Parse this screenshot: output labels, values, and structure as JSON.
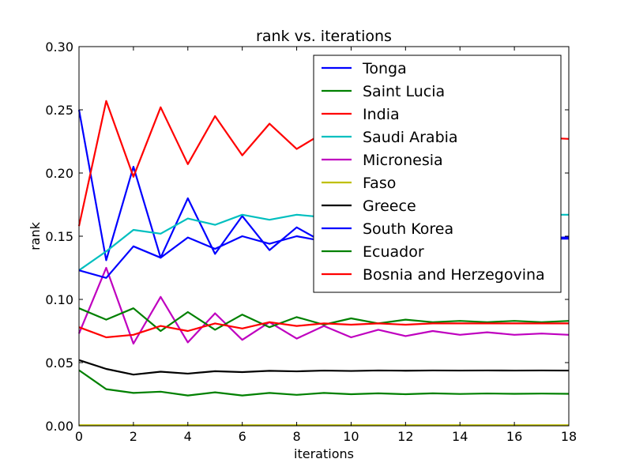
{
  "chart_data": {
    "type": "line",
    "title": "rank vs. iterations",
    "xlabel": "iterations",
    "ylabel": "rank",
    "xlim": [
      0,
      18
    ],
    "ylim": [
      0.0,
      0.3
    ],
    "xticks": [
      "0",
      "2",
      "4",
      "6",
      "8",
      "10",
      "12",
      "14",
      "16",
      "18"
    ],
    "yticks": [
      "0.00",
      "0.05",
      "0.10",
      "0.15",
      "0.20",
      "0.25",
      "0.30"
    ],
    "grid": false,
    "legend_position": "top-right",
    "x": [
      0,
      1,
      2,
      3,
      4,
      5,
      6,
      7,
      8,
      9,
      10,
      11,
      12,
      13,
      14,
      15,
      16,
      17,
      18
    ],
    "series": [
      {
        "name": "Tonga",
        "color": "#0000ff",
        "values": [
          0.25,
          0.131,
          0.205,
          0.133,
          0.18,
          0.136,
          0.166,
          0.139,
          0.157,
          0.145,
          0.152,
          0.148,
          0.151,
          0.149,
          0.15,
          0.149,
          0.15,
          0.149,
          0.149
        ]
      },
      {
        "name": "Saint Lucia",
        "color": "#008000",
        "values": [
          0.044,
          0.029,
          0.026,
          0.027,
          0.024,
          0.0265,
          0.024,
          0.026,
          0.0245,
          0.026,
          0.025,
          0.0257,
          0.025,
          0.0257,
          0.0252,
          0.0256,
          0.0253,
          0.0255,
          0.0253
        ]
      },
      {
        "name": "India",
        "color": "#ff0000",
        "values": [
          0.158,
          0.257,
          0.197,
          0.252,
          0.207,
          0.245,
          0.214,
          0.239,
          0.219,
          0.232,
          0.224,
          0.23,
          0.226,
          0.229,
          0.227,
          0.229,
          0.227,
          0.228,
          0.227
        ]
      },
      {
        "name": "Saudi Arabia",
        "color": "#00bfbf",
        "values": [
          0.123,
          0.138,
          0.155,
          0.152,
          0.164,
          0.159,
          0.167,
          0.163,
          0.167,
          0.165,
          0.167,
          0.166,
          0.167,
          0.166,
          0.167,
          0.167,
          0.167,
          0.167,
          0.167
        ]
      },
      {
        "name": "Micronesia",
        "color": "#bf00bf",
        "values": [
          0.073,
          0.125,
          0.065,
          0.102,
          0.066,
          0.089,
          0.068,
          0.082,
          0.069,
          0.079,
          0.07,
          0.076,
          0.071,
          0.075,
          0.072,
          0.074,
          0.072,
          0.073,
          0.072
        ]
      },
      {
        "name": "Faso",
        "color": "#bfbf00",
        "values": [
          0.0005,
          0.0005,
          0.0005,
          0.0005,
          0.0005,
          0.0005,
          0.0005,
          0.0005,
          0.0005,
          0.0005,
          0.0005,
          0.0005,
          0.0005,
          0.0005,
          0.0005,
          0.0005,
          0.0005,
          0.0005,
          0.0005
        ]
      },
      {
        "name": "Greece",
        "color": "#000000",
        "values": [
          0.052,
          0.045,
          0.0405,
          0.0428,
          0.0413,
          0.0432,
          0.0425,
          0.0435,
          0.0431,
          0.0437,
          0.0434,
          0.0438,
          0.0436,
          0.0438,
          0.0437,
          0.0438,
          0.0437,
          0.0438,
          0.0437
        ]
      },
      {
        "name": "South Korea",
        "color": "#0000ff",
        "values": [
          0.123,
          0.117,
          0.142,
          0.133,
          0.149,
          0.14,
          0.15,
          0.144,
          0.15,
          0.146,
          0.149,
          0.147,
          0.149,
          0.148,
          0.148,
          0.148,
          0.148,
          0.148,
          0.148
        ]
      },
      {
        "name": "Ecuador",
        "color": "#008000",
        "values": [
          0.093,
          0.084,
          0.093,
          0.075,
          0.09,
          0.076,
          0.088,
          0.078,
          0.086,
          0.08,
          0.085,
          0.081,
          0.084,
          0.082,
          0.083,
          0.082,
          0.083,
          0.082,
          0.083
        ]
      },
      {
        "name": "Bosnia and Herzegovina",
        "color": "#ff0000",
        "values": [
          0.078,
          0.07,
          0.072,
          0.079,
          0.075,
          0.081,
          0.077,
          0.082,
          0.079,
          0.081,
          0.08,
          0.081,
          0.08,
          0.081,
          0.081,
          0.081,
          0.081,
          0.081,
          0.081
        ]
      }
    ]
  }
}
